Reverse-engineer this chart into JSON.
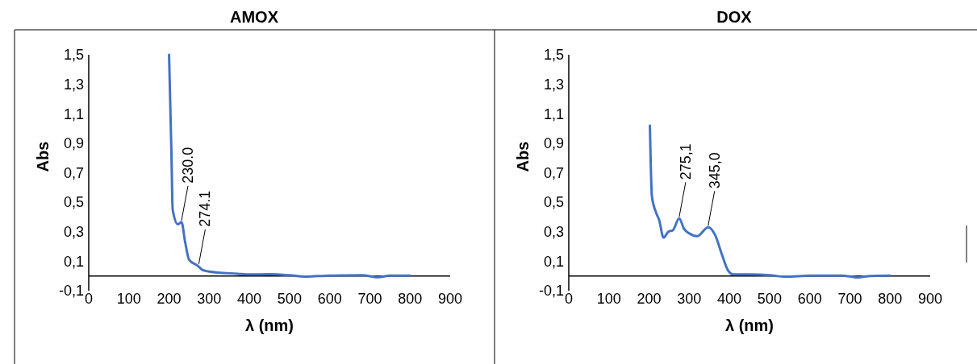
{
  "chart_data": [
    {
      "type": "line",
      "title": "AMOX",
      "xlabel": "λ (nm)",
      "ylabel": "Abs",
      "x": [
        200,
        206,
        209,
        222,
        231,
        240,
        250,
        271,
        284,
        300,
        371,
        400,
        450,
        500,
        540,
        600,
        680,
        720,
        750,
        800
      ],
      "series": [
        {
          "color": "#4472c4",
          "values": [
            1.5,
            0.82,
            0.45,
            0.35,
            0.365,
            0.23,
            0.11,
            0.07,
            0.04,
            0.03,
            0.015,
            0.01,
            0.012,
            0.005,
            -0.005,
            0.003,
            0.005,
            -0.008,
            0.002,
            0.003
          ]
        }
      ],
      "xlim": [
        0,
        900
      ],
      "xticks": [
        0,
        100,
        200,
        300,
        400,
        500,
        600,
        700,
        800,
        900
      ],
      "ylim": [
        -0.1,
        1.5
      ],
      "yticks": [
        {
          "value": -0.1,
          "label": "-0,1"
        },
        {
          "value": 0.1,
          "label": "0,1"
        },
        {
          "value": 0.3,
          "label": "0,3"
        },
        {
          "value": 0.5,
          "label": "0,5"
        },
        {
          "value": 0.7,
          "label": "0,7"
        },
        {
          "value": 0.9,
          "label": "0,9"
        },
        {
          "value": 1.1,
          "label": "1,1"
        },
        {
          "value": 1.3,
          "label": "1,3"
        },
        {
          "value": 1.5,
          "label": "1,5"
        }
      ],
      "annotations": [
        {
          "text": "230.0",
          "x": 231,
          "y": 0.365
        },
        {
          "text": "274.1",
          "x": 274,
          "y": 0.07
        }
      ],
      "grid": false,
      "marker": "none",
      "line_style": "solid"
    },
    {
      "type": "line",
      "title": "DOX",
      "xlabel": "λ (nm)",
      "ylabel": "Abs",
      "x": [
        202,
        207,
        216,
        225,
        236,
        248,
        259,
        275,
        287,
        299,
        320,
        347,
        364,
        382,
        396,
        410,
        450,
        500,
        540,
        600,
        680,
        720,
        750,
        800
      ],
      "series": [
        {
          "color": "#4472c4",
          "values": [
            1.02,
            0.54,
            0.44,
            0.38,
            0.26,
            0.3,
            0.31,
            0.39,
            0.32,
            0.29,
            0.27,
            0.33,
            0.28,
            0.14,
            0.04,
            0.01,
            0.01,
            0.005,
            -0.005,
            0.002,
            0.003,
            -0.01,
            0.0,
            0.002
          ]
        }
      ],
      "xlim": [
        0,
        900
      ],
      "xticks": [
        0,
        100,
        200,
        300,
        400,
        500,
        600,
        700,
        800,
        900
      ],
      "ylim": [
        -0.1,
        1.5
      ],
      "yticks": [
        {
          "value": -0.1,
          "label": "-0,1"
        },
        {
          "value": 0.1,
          "label": "0,1"
        },
        {
          "value": 0.3,
          "label": "0,3"
        },
        {
          "value": 0.5,
          "label": "0,5"
        },
        {
          "value": 0.7,
          "label": "0,7"
        },
        {
          "value": 0.9,
          "label": "0,9"
        },
        {
          "value": 1.1,
          "label": "1,1"
        },
        {
          "value": 1.3,
          "label": "1,3"
        },
        {
          "value": 1.5,
          "label": "1,5"
        }
      ],
      "annotations": [
        {
          "text": "275,1",
          "x": 275,
          "y": 0.39
        },
        {
          "text": "345,0",
          "x": 347,
          "y": 0.33
        }
      ],
      "grid": false,
      "marker": "none",
      "line_style": "solid"
    }
  ]
}
